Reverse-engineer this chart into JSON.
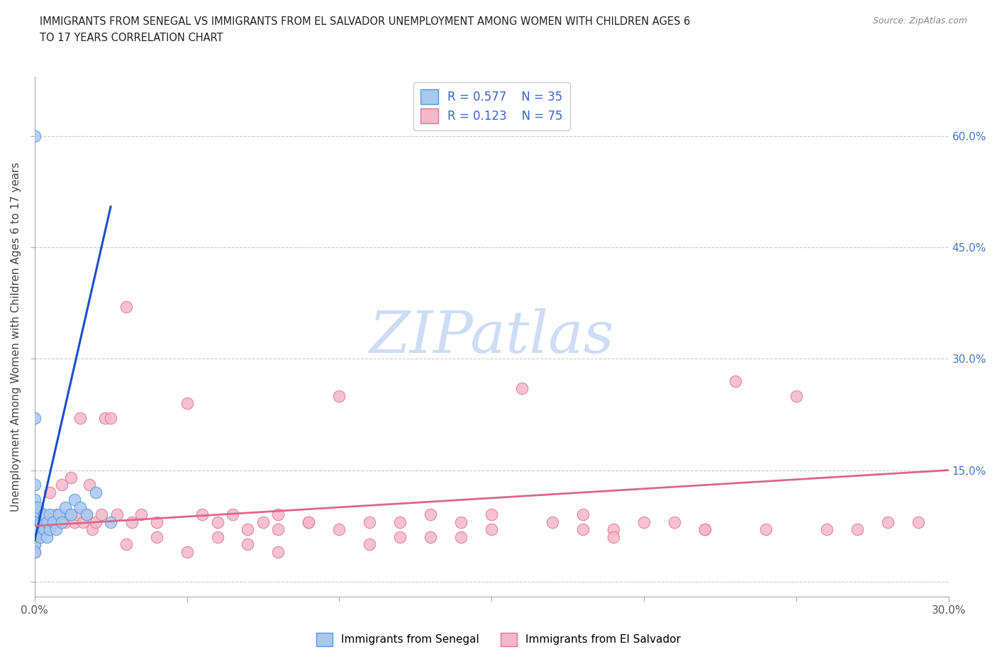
{
  "title_line1": "IMMIGRANTS FROM SENEGAL VS IMMIGRANTS FROM EL SALVADOR UNEMPLOYMENT AMONG WOMEN WITH CHILDREN AGES 6",
  "title_line2": "TO 17 YEARS CORRELATION CHART",
  "source": "Source: ZipAtlas.com",
  "ylabel": "Unemployment Among Women with Children Ages 6 to 17 years",
  "xlim": [
    0.0,
    0.3
  ],
  "ylim": [
    -0.02,
    0.68
  ],
  "senegal_fill": "#a8c8f0",
  "senegal_edge": "#5599dd",
  "salvador_fill": "#f5b8c8",
  "salvador_edge": "#dd7799",
  "trend_blue": "#1a4fcc",
  "trend_pink": "#dd6688",
  "grid_color": "#cccccc",
  "legend_text_color": "#3366cc",
  "watermark_color": "#ccddf5",
  "bg_color": "#ffffff",
  "senegal_x": [
    0.0,
    0.0,
    0.0,
    0.0,
    0.0,
    0.0,
    0.0,
    0.0,
    0.0,
    0.0,
    0.0,
    0.0,
    0.0,
    0.0,
    0.001,
    0.001,
    0.002,
    0.002,
    0.003,
    0.003,
    0.004,
    0.004,
    0.005,
    0.005,
    0.006,
    0.007,
    0.008,
    0.009,
    0.01,
    0.012,
    0.013,
    0.015,
    0.017,
    0.02,
    0.025
  ],
  "senegal_y": [
    0.6,
    0.22,
    0.13,
    0.11,
    0.1,
    0.09,
    0.08,
    0.08,
    0.07,
    0.07,
    0.06,
    0.06,
    0.05,
    0.04,
    0.1,
    0.07,
    0.08,
    0.06,
    0.09,
    0.07,
    0.08,
    0.06,
    0.09,
    0.07,
    0.08,
    0.07,
    0.09,
    0.08,
    0.1,
    0.09,
    0.11,
    0.1,
    0.09,
    0.12,
    0.08
  ],
  "salvador_x": [
    0.0,
    0.0,
    0.0,
    0.0,
    0.0,
    0.0,
    0.0,
    0.005,
    0.007,
    0.008,
    0.009,
    0.01,
    0.011,
    0.012,
    0.013,
    0.014,
    0.015,
    0.016,
    0.017,
    0.018,
    0.019,
    0.02,
    0.022,
    0.023,
    0.025,
    0.027,
    0.03,
    0.032,
    0.035,
    0.04,
    0.05,
    0.055,
    0.06,
    0.065,
    0.07,
    0.075,
    0.08,
    0.09,
    0.1,
    0.11,
    0.12,
    0.13,
    0.14,
    0.15,
    0.16,
    0.17,
    0.18,
    0.19,
    0.2,
    0.21,
    0.22,
    0.23,
    0.24,
    0.25,
    0.26,
    0.27,
    0.28,
    0.29,
    0.15,
    0.1,
    0.08,
    0.06,
    0.04,
    0.03,
    0.12,
    0.18,
    0.22,
    0.09,
    0.13,
    0.07,
    0.05,
    0.14,
    0.11,
    0.19,
    0.08
  ],
  "salvador_y": [
    0.1,
    0.09,
    0.08,
    0.07,
    0.06,
    0.05,
    0.04,
    0.12,
    0.09,
    0.08,
    0.13,
    0.08,
    0.09,
    0.14,
    0.08,
    0.09,
    0.22,
    0.08,
    0.09,
    0.13,
    0.07,
    0.08,
    0.09,
    0.22,
    0.22,
    0.09,
    0.37,
    0.08,
    0.09,
    0.08,
    0.24,
    0.09,
    0.08,
    0.09,
    0.07,
    0.08,
    0.09,
    0.08,
    0.25,
    0.08,
    0.08,
    0.09,
    0.08,
    0.09,
    0.26,
    0.08,
    0.09,
    0.07,
    0.08,
    0.08,
    0.07,
    0.27,
    0.07,
    0.25,
    0.07,
    0.07,
    0.08,
    0.08,
    0.07,
    0.07,
    0.07,
    0.06,
    0.06,
    0.05,
    0.06,
    0.07,
    0.07,
    0.08,
    0.06,
    0.05,
    0.04,
    0.06,
    0.05,
    0.06,
    0.04
  ],
  "blue_trend_x": [
    0.0,
    0.025
  ],
  "blue_trend_y_intercept": 0.055,
  "blue_trend_slope": 18.0,
  "pink_trend_x": [
    0.0,
    0.3
  ],
  "pink_trend_y_intercept": 0.075,
  "pink_trend_slope": 0.25
}
